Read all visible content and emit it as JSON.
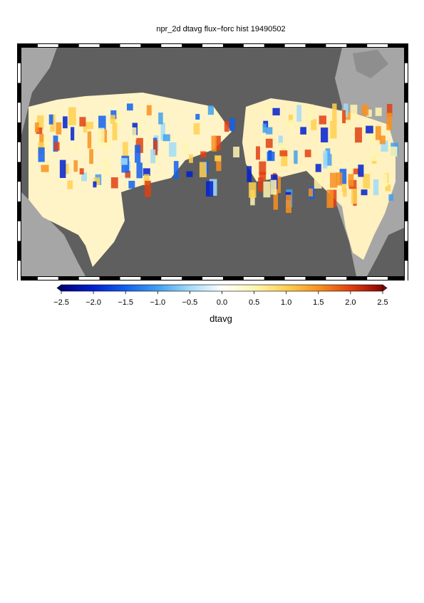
{
  "title": "npr_2d dtavg flux−forc hist 19490502",
  "colorbar": {
    "label": "dtavg",
    "lim": [
      -2.5,
      2.5
    ],
    "ticks": [
      {
        "value": -2.5,
        "label": "−2.5"
      },
      {
        "value": -2.0,
        "label": "−2.0"
      },
      {
        "value": -1.5,
        "label": "−1.5"
      },
      {
        "value": -1.0,
        "label": "−1.0"
      },
      {
        "value": -0.5,
        "label": "−0.5"
      },
      {
        "value": 0,
        "label": "0.0"
      },
      0.5,
      {
        "value": 1.0,
        "label": "1.0"
      },
      1.5,
      {
        "value": 2.0,
        "label": "2.0"
      },
      2.5
    ],
    "colors": [
      "#00007f",
      "#0020d0",
      "#1060f0",
      "#40a0f0",
      "#a0dcf8",
      "#ffffff",
      "#fff6b0",
      "#ffd050",
      "#f89020",
      "#e04010",
      "#8a0000"
    ]
  }
}
